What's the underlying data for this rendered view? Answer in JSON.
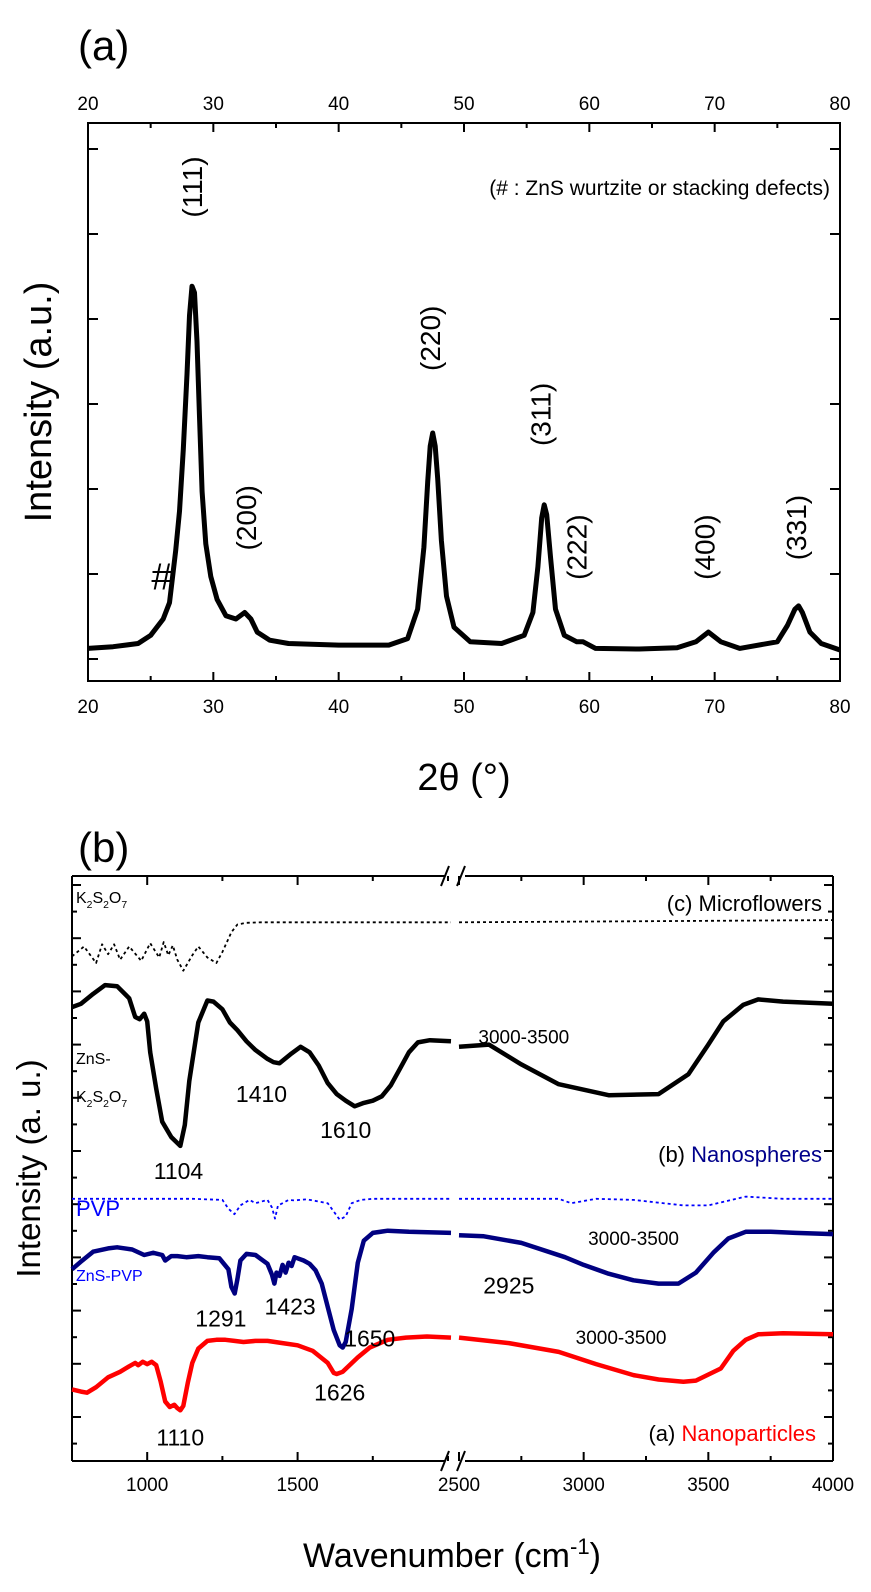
{
  "chart_data": [
    {
      "panel_label": "(a)",
      "type": "line",
      "xlabel": "2θ (°)",
      "ylabel": "Intensity (a.u.)",
      "xlim": [
        20,
        80
      ],
      "x_ticks": [
        "20",
        "30",
        "40",
        "50",
        "60",
        "70",
        "80"
      ],
      "annotation": "(# : ZnS wurtzite or stacking defects)",
      "series": [
        {
          "color": "#000000",
          "x": [
            20,
            22,
            24,
            25,
            26,
            26.5,
            27,
            27.3,
            27.6,
            27.9,
            28.1,
            28.3,
            28.5,
            28.7,
            28.9,
            29.1,
            29.4,
            29.8,
            30.3,
            31,
            31.8,
            32.5,
            33,
            33.5,
            34.5,
            36,
            40,
            44,
            45.5,
            46.3,
            46.8,
            47.1,
            47.3,
            47.5,
            47.7,
            47.9,
            48.2,
            48.6,
            49.2,
            50.5,
            53,
            54.8,
            55.5,
            55.9,
            56.2,
            56.4,
            56.6,
            56.9,
            57.3,
            58,
            59,
            59.5,
            60.5,
            64,
            67,
            68.5,
            69.5,
            70.5,
            72,
            75,
            75.8,
            76.4,
            76.7,
            77,
            77.6,
            78.5,
            80
          ],
          "values": [
            0.4,
            0.45,
            0.55,
            0.8,
            1.3,
            1.8,
            3.4,
            4.6,
            6.5,
            8.8,
            10.6,
            11.5,
            11.3,
            9.8,
            7.5,
            5.2,
            3.6,
            2.6,
            1.9,
            1.4,
            1.3,
            1.5,
            1.3,
            0.9,
            0.65,
            0.55,
            0.5,
            0.5,
            0.7,
            1.6,
            3.5,
            5.5,
            6.6,
            7.0,
            6.6,
            5.6,
            3.7,
            2.0,
            1.05,
            0.6,
            0.55,
            0.8,
            1.5,
            2.9,
            4.4,
            4.8,
            4.5,
            3.2,
            1.6,
            0.8,
            0.6,
            0.6,
            0.4,
            0.38,
            0.42,
            0.6,
            0.9,
            0.6,
            0.4,
            0.6,
            1.1,
            1.6,
            1.7,
            1.5,
            0.9,
            0.55,
            0.35
          ]
        }
      ],
      "peak_labels": [
        {
          "text": "(111)",
          "x": 28.5,
          "y": 13.6
        },
        {
          "text": "(200)",
          "x": 32.8,
          "y": 3.4
        },
        {
          "text": "(220)",
          "x": 47.5,
          "y": 8.9
        },
        {
          "text": "(311)",
          "x": 56.3,
          "y": 6.6
        },
        {
          "text": "(222)",
          "x": 59.2,
          "y": 2.5
        },
        {
          "text": "(400)",
          "x": 69.4,
          "y": 2.5
        },
        {
          "text": "(331)",
          "x": 76.7,
          "y": 3.1
        }
      ],
      "marker_label": {
        "text": "#",
        "x": 25.9,
        "y": 2.2
      }
    },
    {
      "panel_label": "(b)",
      "type": "line",
      "xlabel": "Wavenumber (cm",
      "xlabel_sup": "-1",
      "xlabel_end": ")",
      "ylabel": "Intensity (a. u.)",
      "x_broken_axis": true,
      "x_segments": [
        {
          "range": [
            750,
            2010
          ],
          "tick_labels": [
            "1000",
            "1500"
          ],
          "tick_values": [
            1000,
            1500
          ]
        },
        {
          "range": [
            2500,
            4000
          ],
          "tick_labels": [
            "2500",
            "3000",
            "3500",
            "4000"
          ],
          "tick_values": [
            2500,
            3000,
            3500,
            4000
          ]
        }
      ],
      "series": [
        {
          "group": "c",
          "color": "#000000",
          "dash": true,
          "x": [
            750,
            790,
            830,
            850,
            870,
            890,
            910,
            940,
            980,
            1010,
            1040,
            1055,
            1070,
            1085,
            1100,
            1120,
            1150,
            1170,
            1200,
            1230,
            1250,
            1280,
            1300,
            1330,
            1380,
            1450,
            1550,
            1650,
            1750,
            1850,
            1950,
            2010,
            2500,
            4000
          ],
          "values": [
            41.2,
            42.1,
            40.6,
            42.3,
            41.4,
            42.3,
            40.9,
            42.1,
            40.8,
            42.4,
            41.1,
            42.5,
            41.3,
            42.2,
            40.9,
            39.9,
            41.3,
            42.1,
            41.1,
            40.6,
            41.6,
            43.4,
            44.1,
            44.25,
            44.3,
            44.3,
            44.3,
            44.3,
            44.3,
            44.3,
            44.3,
            44.3,
            44.3,
            44.5
          ]
        },
        {
          "group": "c",
          "color": "#000000",
          "x": [
            750,
            780,
            820,
            860,
            900,
            940,
            960,
            975,
            990,
            1000,
            1010,
            1030,
            1050,
            1080,
            1110,
            1125,
            1140,
            1170,
            1200,
            1220,
            1250,
            1275,
            1300,
            1330,
            1360,
            1400,
            1420,
            1440,
            1480,
            1510,
            1540,
            1570,
            1600,
            1630,
            1660,
            1690,
            1720,
            1750,
            1780,
            1810,
            1840,
            1870,
            1900,
            1940,
            2010,
            2500,
            2620,
            2750,
            2900,
            3100,
            3300,
            3420,
            3500,
            3560,
            3640,
            3700,
            3800,
            4000
          ],
          "values": [
            36.6,
            36.9,
            37.8,
            38.6,
            38.5,
            37.4,
            35.7,
            35.5,
            36.0,
            35.3,
            32.5,
            29.2,
            26.2,
            24.8,
            24.0,
            25.9,
            29.9,
            35.2,
            37.2,
            37.1,
            36.4,
            35.2,
            34.5,
            33.5,
            32.7,
            31.9,
            31.6,
            31.5,
            32.4,
            33.0,
            32.5,
            31.3,
            29.7,
            28.7,
            28.1,
            27.6,
            27.9,
            28.1,
            28.5,
            29.5,
            31.0,
            32.5,
            33.4,
            33.6,
            33.5,
            33.0,
            33.2,
            31.4,
            29.6,
            28.6,
            28.7,
            30.5,
            33.2,
            35.3,
            36.8,
            37.3,
            37.1,
            36.9
          ]
        },
        {
          "group": "b",
          "color": "#0000ff",
          "dash": true,
          "x": [
            750,
            1000,
            1150,
            1250,
            1270,
            1290,
            1310,
            1340,
            1360,
            1400,
            1415,
            1425,
            1435,
            1450,
            1470,
            1490,
            1530,
            1600,
            1640,
            1660,
            1680,
            1710,
            1750,
            1850,
            1950,
            2010,
            2500,
            2900,
            2950,
            3000,
            3050,
            3200,
            3400,
            3500,
            3650,
            3800,
            4000
          ],
          "values": [
            19.2,
            19.2,
            19.2,
            19.1,
            18.3,
            17.8,
            18.6,
            19.1,
            18.8,
            19.1,
            18.4,
            17.4,
            18.6,
            18.8,
            19.1,
            19.05,
            19.15,
            18.8,
            17.3,
            17.6,
            18.8,
            19.1,
            19.2,
            19.2,
            19.2,
            19.2,
            19.2,
            19.2,
            18.8,
            19.0,
            19.2,
            19.1,
            18.6,
            18.6,
            19.4,
            19.2,
            19.2
          ]
        },
        {
          "group": "b",
          "color": "#000080",
          "x": [
            750,
            780,
            820,
            870,
            900,
            950,
            990,
            1020,
            1050,
            1060,
            1080,
            1100,
            1130,
            1170,
            1200,
            1240,
            1270,
            1280,
            1291,
            1300,
            1310,
            1330,
            1360,
            1380,
            1400,
            1415,
            1423,
            1430,
            1440,
            1450,
            1460,
            1470,
            1480,
            1490,
            1500,
            1520,
            1540,
            1560,
            1580,
            1600,
            1620,
            1640,
            1650,
            1660,
            1680,
            1700,
            1720,
            1750,
            1800,
            1870,
            2010,
            2500,
            2600,
            2750,
            2925,
            3000,
            3100,
            3200,
            3300,
            3380,
            3450,
            3520,
            3580,
            3650,
            3750,
            3850,
            4000
          ],
          "values": [
            12.8,
            13.5,
            14.4,
            14.7,
            14.8,
            14.6,
            14.1,
            14.3,
            14.1,
            13.6,
            14.0,
            14.0,
            13.9,
            14.0,
            13.9,
            13.8,
            12.8,
            11.2,
            10.6,
            11.9,
            13.6,
            14.2,
            14.1,
            13.7,
            13.3,
            12.3,
            11.5,
            12.5,
            12.2,
            13.2,
            12.5,
            13.4,
            13.1,
            13.9,
            13.8,
            13.6,
            13.3,
            12.7,
            11.5,
            9.4,
            7.3,
            5.9,
            5.7,
            6.2,
            9.2,
            13.4,
            15.4,
            16.1,
            16.3,
            16.2,
            16.1,
            15.9,
            15.8,
            15.2,
            13.9,
            13.2,
            12.4,
            11.8,
            11.5,
            11.5,
            12.5,
            14.3,
            15.6,
            16.2,
            16.2,
            16.1,
            16.0
          ]
        },
        {
          "group": "a",
          "color": "#ff0000",
          "x": [
            750,
            780,
            800,
            830,
            870,
            910,
            940,
            960,
            970,
            985,
            1000,
            1015,
            1030,
            1045,
            1060,
            1075,
            1090,
            1100,
            1110,
            1120,
            1135,
            1150,
            1170,
            1200,
            1230,
            1260,
            1290,
            1320,
            1360,
            1400,
            1450,
            1500,
            1550,
            1600,
            1620,
            1630,
            1650,
            1700,
            1740,
            1800,
            1860,
            1930,
            2010,
            2500,
            2700,
            2900,
            3050,
            3200,
            3300,
            3400,
            3450,
            3550,
            3600,
            3650,
            3700,
            3800,
            4000
          ],
          "values": [
            1.9,
            1.7,
            1.6,
            2.1,
            3.0,
            3.5,
            4.0,
            4.3,
            4.1,
            4.4,
            4.2,
            4.4,
            4.1,
            2.6,
            0.8,
            0.3,
            0.5,
            0.2,
            0.0,
            0.4,
            2.5,
            4.3,
            5.6,
            6.3,
            6.4,
            6.4,
            6.3,
            6.2,
            6.3,
            6.3,
            6.1,
            5.9,
            5.4,
            4.3,
            3.4,
            3.3,
            3.5,
            4.8,
            5.7,
            6.4,
            6.6,
            6.7,
            6.6,
            6.6,
            6.1,
            5.3,
            4.2,
            3.2,
            2.8,
            2.6,
            2.7,
            3.8,
            5.4,
            6.4,
            6.9,
            7.0,
            6.9
          ]
        }
      ],
      "curve_labels": [
        {
          "group": "c",
          "text": "K",
          "sub1": "2",
          "mid": "S",
          "sub2": "2",
          "end": "O",
          "sub3": "7",
          "color": "#000000",
          "size": 16,
          "pos": "top-left"
        },
        {
          "group": "c",
          "text": "(c) Microflowers",
          "color": "#000000",
          "size": 22,
          "pos": "right"
        },
        {
          "group": "c",
          "text": "ZnS-",
          "color": "#000000",
          "size": 16,
          "pos": "left"
        },
        {
          "group": "b",
          "text": "(b) ",
          "accent": "Nanospheres",
          "color": "#000000",
          "accent_color": "#00008b",
          "size": 22,
          "pos": "right"
        },
        {
          "group": "b",
          "text": "PVP",
          "color": "#0000ff",
          "size": 22,
          "pos": "left"
        },
        {
          "group": "b",
          "text": "ZnS-PVP",
          "color": "#0000ff",
          "size": 16,
          "pos": "left"
        },
        {
          "group": "a",
          "text": "(a) ",
          "accent": "Nanoparticles",
          "color": "#000000",
          "accent_color": "#ff0000",
          "size": 22,
          "pos": "right"
        }
      ],
      "peak_labels": [
        {
          "text": "1104",
          "x": 1104,
          "y": 21.0,
          "color": "#000000"
        },
        {
          "text": "1410",
          "x": 1380,
          "y": 28.0,
          "color": "#000000"
        },
        {
          "text": "1610",
          "x": 1660,
          "y": 24.7,
          "color": "#000000"
        },
        {
          "text": "3000-3500",
          "x": 2760,
          "y": 33.3,
          "color": "#000000"
        },
        {
          "text": "1291",
          "x": 1245,
          "y": 7.6,
          "color": "#000000"
        },
        {
          "text": "1423",
          "x": 1475,
          "y": 8.7,
          "color": "#000000"
        },
        {
          "text": "1650",
          "x": 1740,
          "y": 5.8,
          "color": "#000000"
        },
        {
          "text": "2925",
          "x": 2700,
          "y": 10.6,
          "color": "#000000"
        },
        {
          "text": "3000-3500",
          "x": 3200,
          "y": 15.0,
          "color": "#000000"
        },
        {
          "text": "1110",
          "x": 1110,
          "y": -3.2,
          "color": "#000000"
        },
        {
          "text": "1626",
          "x": 1640,
          "y": 0.9,
          "color": "#000000"
        },
        {
          "text": "3000-3500",
          "x": 3150,
          "y": 6.0,
          "color": "#000000"
        }
      ]
    }
  ]
}
